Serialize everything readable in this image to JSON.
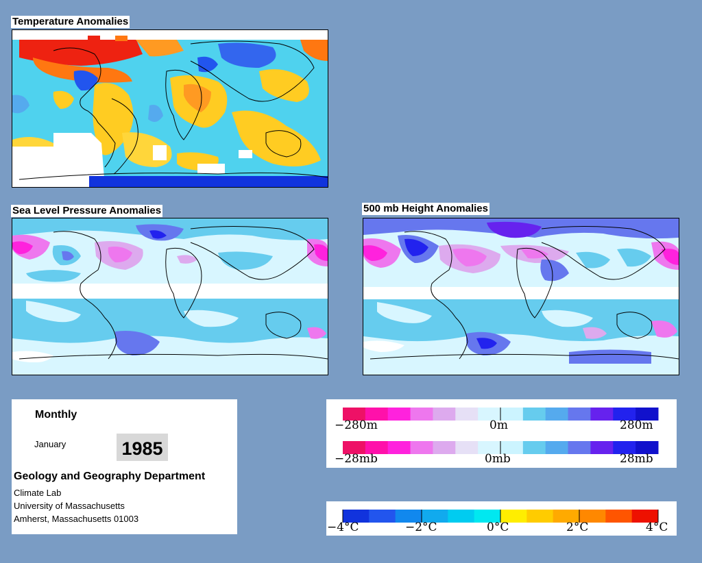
{
  "titles": {
    "temperature": "Temperature Anomalies",
    "slp": "Sea Level Pressure Anomalies",
    "height500": "500 mb Height Anomalies"
  },
  "info": {
    "period": "Monthly",
    "month": "January",
    "year": "1985",
    "department": "Geology and Geography Department",
    "lab": "Climate Lab",
    "university": "University of Massachusetts",
    "address": "Amherst, Massachusetts 01003"
  },
  "height_scale": {
    "colors": [
      "#ee1166",
      "#ff11aa",
      "#ff22dd",
      "#ee77ee",
      "#ddaaee",
      "#e6e0f6",
      "#d8f6ff",
      "#ccf4ff",
      "#66ccee",
      "#55aaee",
      "#6677ee",
      "#6622ee",
      "#2222ee",
      "#1111cc"
    ],
    "labels": {
      "min": "−280m",
      "mid": "0m",
      "max": "280m"
    }
  },
  "slp_scale": {
    "colors": [
      "#ee1166",
      "#ff11aa",
      "#ff22dd",
      "#ee77ee",
      "#ddaaee",
      "#e6e0f6",
      "#d8f6ff",
      "#ccf4ff",
      "#66ccee",
      "#55aaee",
      "#6677ee",
      "#6622ee",
      "#2222ee",
      "#1111cc"
    ],
    "labels": {
      "min": "−28mb",
      "mid": "0mb",
      "max": "28mb"
    }
  },
  "temp_scale": {
    "colors": [
      "#1133dd",
      "#2255ee",
      "#1188ee",
      "#11aaee",
      "#00ccf0",
      "#00e8f0",
      "#ffee00",
      "#ffcc00",
      "#ffaa00",
      "#ff8800",
      "#ff5500",
      "#ee1100"
    ],
    "labels": [
      "−4°C",
      "−2°C",
      "0°C",
      "2°C",
      "4°C"
    ]
  }
}
